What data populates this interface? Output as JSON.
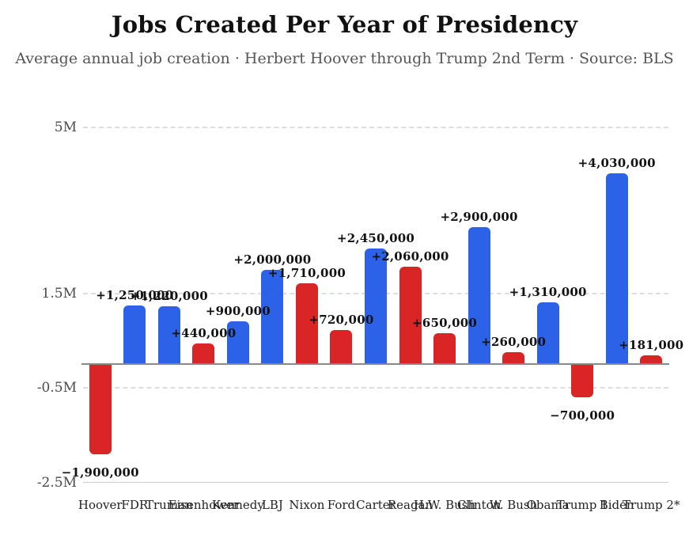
{
  "colors": {
    "democrat_bar": "#2b62e8",
    "republican_bar": "#d92525",
    "grid_dashed": "#dedede",
    "axis_bottom_line": "#cccccc",
    "zero_line": "#898989",
    "title_text": "#111111",
    "subtitle_text": "#555555",
    "tick_text": "#4a4a4a",
    "value_label_text": "#111111",
    "category_text": "#222222",
    "background": "#ffffff"
  },
  "chart_data": {
    "type": "bar",
    "title": "Jobs Created Per Year of Presidency",
    "subtitle": "Average annual job creation · Herbert Hoover through Trump 2nd Term · Source: BLS",
    "xlabel": "",
    "ylabel": "",
    "units": "jobs created per year",
    "ylim": [
      -2500000,
      5000000
    ],
    "legend": "none",
    "grid": "horizontal dashed lines at labeled ticks only",
    "y_ticks": [
      {
        "label": "5M",
        "value": 5000000,
        "line_style": "dashed"
      },
      {
        "label": "1.5M",
        "value": 1500000,
        "line_style": "dashed"
      },
      {
        "label": "-0.5M",
        "value": -500000,
        "line_style": "dashed"
      },
      {
        "label": "-2.5M",
        "value": -2500000,
        "line_style": "solid"
      }
    ],
    "categories": [
      "Hoover",
      "FDR",
      "Truman",
      "Eisenhower",
      "Kennedy",
      "LBJ",
      "Nixon",
      "Ford",
      "Carter",
      "Reagan",
      "H.W. Bush",
      "Clinton",
      "W. Bush",
      "Obama",
      "Trump 1",
      "Biden",
      "Trump 2*"
    ],
    "values": [
      -1900000,
      1250000,
      1220000,
      440000,
      900000,
      2000000,
      1710000,
      720000,
      2450000,
      2060000,
      650000,
      2900000,
      260000,
      1310000,
      -700000,
      4030000,
      181000
    ],
    "value_labels": [
      "−1,900,000",
      "+1,250,000",
      "+1,220,000",
      "+440,000",
      "+900,000",
      "+2,000,000",
      "+1,710,000",
      "+720,000",
      "+2,450,000",
      "+2,060,000",
      "+650,000",
      "+2,900,000",
      "+260,000",
      "+1,310,000",
      "−700,000",
      "+4,030,000",
      "+181,000"
    ],
    "parties": [
      "R",
      "D",
      "D",
      "R",
      "D",
      "D",
      "R",
      "R",
      "D",
      "R",
      "R",
      "D",
      "R",
      "D",
      "R",
      "D",
      "R"
    ]
  }
}
